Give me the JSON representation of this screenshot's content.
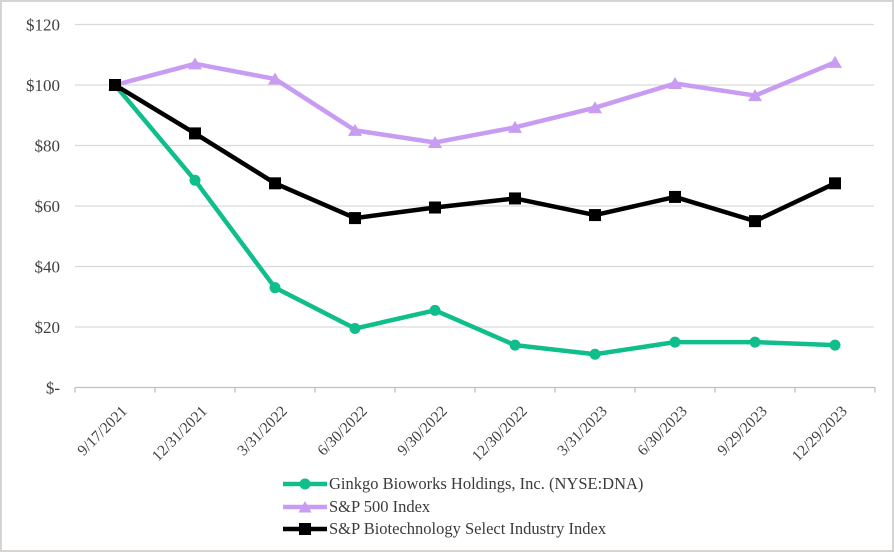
{
  "chart_data": {
    "type": "line",
    "title": "",
    "xlabel": "",
    "ylabel": "",
    "categories": [
      "9/17/2021",
      "12/31/2021",
      "3/31/2022",
      "6/30/2022",
      "9/30/2022",
      "12/30/2022",
      "3/31/2023",
      "6/30/2023",
      "9/29/2023",
      "12/29/2023"
    ],
    "series": [
      {
        "name": "Ginkgo Bioworks Holdings, Inc. (NYSE:DNA)",
        "marker": "circle",
        "color": "#10be8c",
        "values": [
          100,
          68.5,
          33,
          19.5,
          25.5,
          14,
          11,
          15,
          15,
          14
        ]
      },
      {
        "name": "S&P 500 Index",
        "marker": "triangle",
        "color": "#c79cf2",
        "values": [
          100,
          107,
          102,
          85,
          81,
          86,
          92.5,
          100.5,
          96.5,
          107.5
        ]
      },
      {
        "name": "S&P Biotechnology Select Industry Index",
        "marker": "square",
        "color": "#000000",
        "values": [
          100,
          84,
          67.5,
          56,
          59.5,
          62.5,
          57,
          63,
          55,
          67.5
        ]
      }
    ],
    "y_axis": {
      "ticks": [
        {
          "label": "$120",
          "value": 120
        },
        {
          "label": "$100",
          "value": 100
        },
        {
          "label": "$80",
          "value": 80
        },
        {
          "label": "$60",
          "value": 60
        },
        {
          "label": "$40",
          "value": 40
        },
        {
          "label": "$20",
          "value": 20
        },
        {
          "label": "$-",
          "value": 0
        }
      ],
      "ylim": [
        0,
        120
      ]
    },
    "grid": true,
    "legend_position": "bottom-center"
  },
  "colors": {
    "gridline": "#d9d9d9",
    "axis_line": "#bfbfbf",
    "text": "#404040",
    "frame_border": "#d6d3d3",
    "background": "#ffffff"
  }
}
